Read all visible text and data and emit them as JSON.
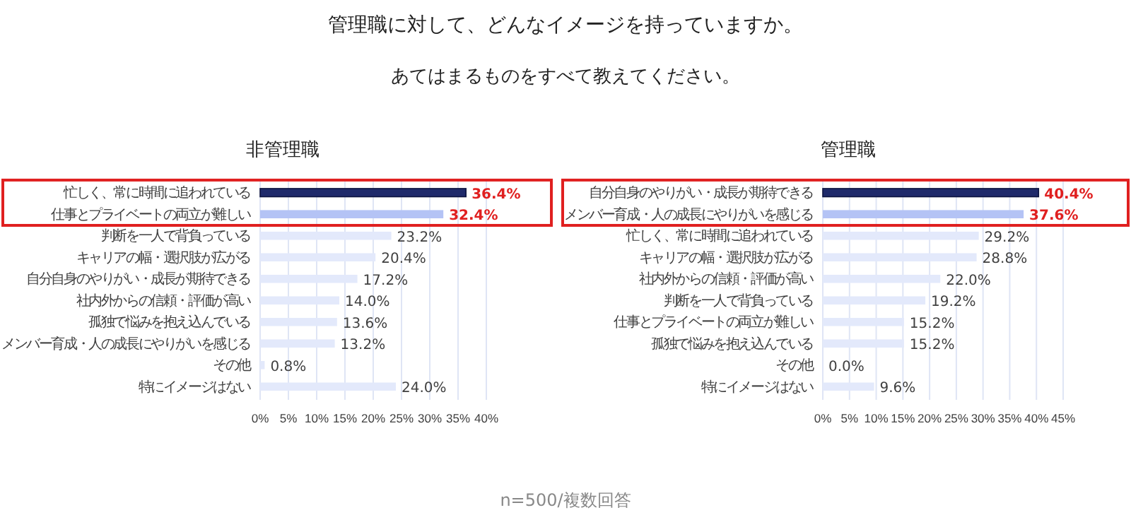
{
  "chart_data": [
    {
      "type": "bar",
      "orientation": "horizontal",
      "title": "非管理職",
      "annotations": [
        "管理職に対して、どんなイメージを持っていますか。",
        "あてはまるものをすべて教えてください。",
        "n=500/複数回答"
      ],
      "categories": [
        "忙しく、常に時間に追われている",
        "仕事とプライベートの両立が難しい",
        "判断を一人で背負っている",
        "キャリアの幅・選択肢が広がる",
        "自分自身のやりがい・成長が期待できる",
        "社内外からの信頼・評価が高い",
        "孤独で悩みを抱え込んでいる",
        "メンバー育成・人の成長にやりがいを感じる",
        "その他",
        "特にイメージはない"
      ],
      "values": [
        36.4,
        32.4,
        23.2,
        20.4,
        17.2,
        14.0,
        13.6,
        13.2,
        0.8,
        24.0
      ],
      "value_labels": [
        "36.4%",
        "32.4%",
        "23.2%",
        "20.4%",
        "17.2%",
        "14.0%",
        "13.6%",
        "13.2%",
        "0.8%",
        "24.0%"
      ],
      "colors": [
        "#1f2a6b",
        "#b4c3f5",
        "#e3e9fb",
        "#e3e9fb",
        "#e3e9fb",
        "#e3e9fb",
        "#e3e9fb",
        "#e3e9fb",
        "#e3e9fb",
        "#e3e9fb"
      ],
      "xlim": [
        0,
        40
      ],
      "xticks": [
        {
          "value": 0,
          "label": "0%"
        },
        {
          "value": 5,
          "label": "5%"
        },
        {
          "value": 10,
          "label": "10%"
        },
        {
          "value": 15,
          "label": "15%"
        },
        {
          "value": 20,
          "label": "20%"
        },
        {
          "value": 25,
          "label": "25%"
        },
        {
          "value": 30,
          "label": "30%"
        },
        {
          "value": 35,
          "label": "35%"
        },
        {
          "value": 40,
          "label": "40%"
        }
      ],
      "grid": "x"
    },
    {
      "type": "bar",
      "orientation": "horizontal",
      "title": "管理職",
      "categories": [
        "自分自身のやりがい・成長が期待できる",
        "メンバー育成・人の成長にやりがいを感じる",
        "忙しく、常に時間に追われている",
        "キャリアの幅・選択肢が広がる",
        "社内外からの信頼・評価が高い",
        "判断を一人で背負っている",
        "仕事とプライベートの両立が難しい",
        "孤独で悩みを抱え込んでいる",
        "その他",
        "特にイメージはない"
      ],
      "values": [
        40.4,
        37.6,
        29.2,
        28.8,
        22.0,
        19.2,
        15.2,
        15.2,
        0.0,
        9.6
      ],
      "value_labels": [
        "40.4%",
        "37.6%",
        "29.2%",
        "28.8%",
        "22.0%",
        "19.2%",
        "15.2%",
        "15.2%",
        "0.0%",
        "9.6%"
      ],
      "colors": [
        "#1f2a6b",
        "#b4c3f5",
        "#e3e9fb",
        "#e3e9fb",
        "#e3e9fb",
        "#e3e9fb",
        "#e3e9fb",
        "#e3e9fb",
        "#e3e9fb",
        "#e3e9fb"
      ],
      "xlim": [
        0,
        45
      ],
      "xticks": [
        {
          "value": 0,
          "label": "0%"
        },
        {
          "value": 5,
          "label": "5%"
        },
        {
          "value": 10,
          "label": "10%"
        },
        {
          "value": 15,
          "label": "15%"
        },
        {
          "value": 20,
          "label": "20%"
        },
        {
          "value": 25,
          "label": "25%"
        },
        {
          "value": 30,
          "label": "30%"
        },
        {
          "value": 35,
          "label": "35%"
        },
        {
          "value": 40,
          "label": "40%"
        },
        {
          "value": 45,
          "label": "45%"
        }
      ],
      "grid": "x"
    }
  ]
}
